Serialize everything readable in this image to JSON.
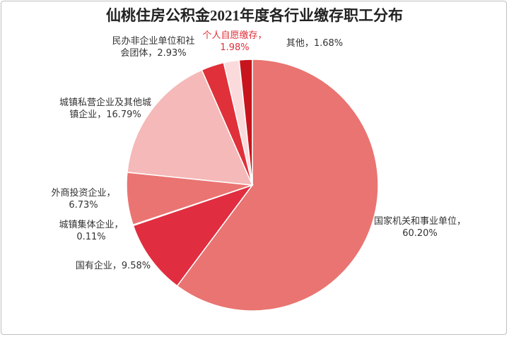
{
  "chart_data": {
    "type": "pie",
    "title": "仙桃住房公积金2021年度各行业缴存职工分布",
    "categories": [
      "国家机关和事业单位，",
      "国有企业，",
      "城镇集体企业，",
      "外商投资企业，",
      "城镇私营企业及其他城镇企业，",
      "民办非企业单位和社会团体，",
      "个人自愿缴存，",
      "其他，"
    ],
    "values": [
      60.2,
      9.58,
      0.11,
      6.73,
      16.79,
      2.93,
      1.98,
      1.68
    ],
    "value_labels": [
      "60.20%",
      "9.58%",
      "0.11%",
      "6.73%",
      "16.79%",
      "2.93%",
      "1.98%",
      "1.68%"
    ],
    "colors": [
      "#e97471",
      "#e12d40",
      "#e97471",
      "#ea7472",
      "#f4b9b8",
      "#e0303a",
      "#fbdadb",
      "#c8151d"
    ],
    "label_colors": [
      "#333333",
      "#333333",
      "#333333",
      "#333333",
      "#333333",
      "#333333",
      "#e0303a",
      "#333333"
    ]
  }
}
